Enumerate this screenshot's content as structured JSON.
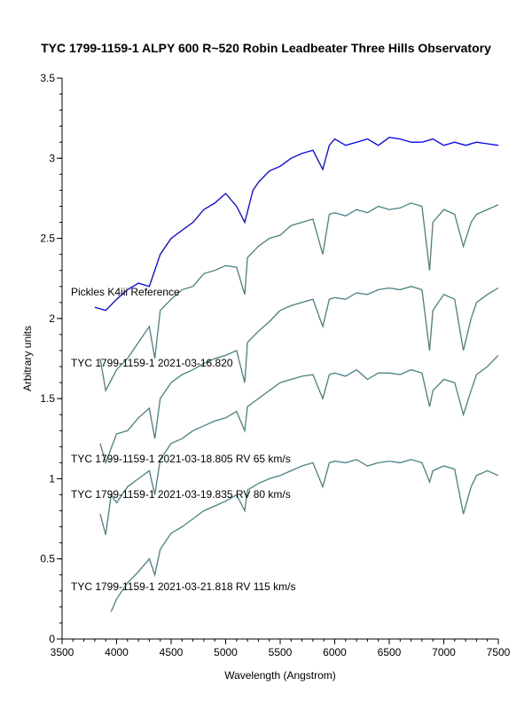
{
  "chart_data": {
    "type": "line",
    "title": "TYC 1799-1159-1   ALPY 600  R~520   Robin  Leadbeater Three Hills Observatory",
    "xlabel": "Wavelength (Angstrom)",
    "ylabel": "Arbitrary units",
    "xlim": [
      3500,
      7500
    ],
    "ylim": [
      0,
      3.5
    ],
    "xticks": [
      3500,
      4000,
      4500,
      5000,
      5500,
      6000,
      6500,
      7000,
      7500
    ],
    "yticks": [
      0,
      0.5,
      1,
      1.5,
      2,
      2.5,
      3,
      3.5
    ],
    "ytick_labels": [
      "0",
      "0.5",
      "1",
      "1.5",
      "2",
      "2.5",
      "3",
      "3.5"
    ],
    "grid": false,
    "series": [
      {
        "name": "Pickles K4iii Reference",
        "color": "#0000ff",
        "points": [
          [
            3800,
            2.07
          ],
          [
            3900,
            2.05
          ],
          [
            4000,
            2.12
          ],
          [
            4100,
            2.18
          ],
          [
            4200,
            2.22
          ],
          [
            4300,
            2.2
          ],
          [
            4400,
            2.4
          ],
          [
            4500,
            2.5
          ],
          [
            4600,
            2.55
          ],
          [
            4700,
            2.6
          ],
          [
            4800,
            2.68
          ],
          [
            4900,
            2.72
          ],
          [
            5000,
            2.78
          ],
          [
            5100,
            2.7
          ],
          [
            5175,
            2.6
          ],
          [
            5250,
            2.8
          ],
          [
            5300,
            2.85
          ],
          [
            5400,
            2.92
          ],
          [
            5500,
            2.95
          ],
          [
            5600,
            3.0
          ],
          [
            5700,
            3.03
          ],
          [
            5800,
            3.05
          ],
          [
            5890,
            2.93
          ],
          [
            5950,
            3.08
          ],
          [
            6000,
            3.12
          ],
          [
            6100,
            3.08
          ],
          [
            6200,
            3.1
          ],
          [
            6300,
            3.12
          ],
          [
            6400,
            3.08
          ],
          [
            6500,
            3.13
          ],
          [
            6600,
            3.12
          ],
          [
            6700,
            3.1
          ],
          [
            6800,
            3.1
          ],
          [
            6900,
            3.12
          ],
          [
            7000,
            3.08
          ],
          [
            7100,
            3.1
          ],
          [
            7200,
            3.08
          ],
          [
            7300,
            3.1
          ],
          [
            7400,
            3.09
          ],
          [
            7500,
            3.08
          ]
        ]
      },
      {
        "name": "TYC 1799-1159-1  2021-03-16.820",
        "color": "#4a8080",
        "points": [
          [
            3850,
            1.75
          ],
          [
            3900,
            1.55
          ],
          [
            4000,
            1.68
          ],
          [
            4100,
            1.75
          ],
          [
            4200,
            1.85
          ],
          [
            4300,
            1.95
          ],
          [
            4350,
            1.75
          ],
          [
            4400,
            2.05
          ],
          [
            4500,
            2.12
          ],
          [
            4600,
            2.18
          ],
          [
            4700,
            2.2
          ],
          [
            4800,
            2.28
          ],
          [
            4900,
            2.3
          ],
          [
            5000,
            2.33
          ],
          [
            5100,
            2.32
          ],
          [
            5175,
            2.15
          ],
          [
            5200,
            2.38
          ],
          [
            5300,
            2.45
          ],
          [
            5400,
            2.5
          ],
          [
            5500,
            2.52
          ],
          [
            5600,
            2.58
          ],
          [
            5700,
            2.6
          ],
          [
            5800,
            2.62
          ],
          [
            5890,
            2.4
          ],
          [
            5950,
            2.65
          ],
          [
            6000,
            2.66
          ],
          [
            6100,
            2.64
          ],
          [
            6200,
            2.68
          ],
          [
            6300,
            2.66
          ],
          [
            6400,
            2.7
          ],
          [
            6500,
            2.68
          ],
          [
            6600,
            2.69
          ],
          [
            6700,
            2.72
          ],
          [
            6800,
            2.7
          ],
          [
            6870,
            2.3
          ],
          [
            6900,
            2.6
          ],
          [
            7000,
            2.68
          ],
          [
            7100,
            2.65
          ],
          [
            7180,
            2.45
          ],
          [
            7250,
            2.6
          ],
          [
            7300,
            2.65
          ],
          [
            7400,
            2.68
          ],
          [
            7500,
            2.71
          ]
        ]
      },
      {
        "name": "TYC 1799-1159-1  2021-03-18.805   RV 65 km/s",
        "color": "#4a8080",
        "points": [
          [
            3850,
            1.22
          ],
          [
            3900,
            1.1
          ],
          [
            4000,
            1.28
          ],
          [
            4100,
            1.3
          ],
          [
            4200,
            1.38
          ],
          [
            4300,
            1.44
          ],
          [
            4350,
            1.25
          ],
          [
            4400,
            1.5
          ],
          [
            4500,
            1.6
          ],
          [
            4600,
            1.65
          ],
          [
            4700,
            1.68
          ],
          [
            4800,
            1.72
          ],
          [
            4900,
            1.75
          ],
          [
            5000,
            1.77
          ],
          [
            5100,
            1.8
          ],
          [
            5175,
            1.6
          ],
          [
            5200,
            1.85
          ],
          [
            5300,
            1.92
          ],
          [
            5400,
            1.98
          ],
          [
            5500,
            2.05
          ],
          [
            5600,
            2.08
          ],
          [
            5700,
            2.1
          ],
          [
            5800,
            2.12
          ],
          [
            5890,
            1.95
          ],
          [
            5950,
            2.12
          ],
          [
            6000,
            2.13
          ],
          [
            6100,
            2.12
          ],
          [
            6200,
            2.16
          ],
          [
            6300,
            2.15
          ],
          [
            6400,
            2.18
          ],
          [
            6500,
            2.19
          ],
          [
            6600,
            2.18
          ],
          [
            6700,
            2.2
          ],
          [
            6800,
            2.18
          ],
          [
            6870,
            1.8
          ],
          [
            6900,
            2.05
          ],
          [
            7000,
            2.15
          ],
          [
            7100,
            2.12
          ],
          [
            7180,
            1.8
          ],
          [
            7250,
            2.0
          ],
          [
            7300,
            2.1
          ],
          [
            7400,
            2.15
          ],
          [
            7500,
            2.19
          ]
        ]
      },
      {
        "name": "TYC 1799-1159-1  2021-03-19.835  RV 80 km/s",
        "color": "#4a8080",
        "points": [
          [
            3850,
            0.78
          ],
          [
            3900,
            0.65
          ],
          [
            3950,
            0.9
          ],
          [
            4000,
            0.85
          ],
          [
            4100,
            0.95
          ],
          [
            4200,
            1.0
          ],
          [
            4300,
            1.05
          ],
          [
            4350,
            0.9
          ],
          [
            4400,
            1.12
          ],
          [
            4500,
            1.22
          ],
          [
            4600,
            1.25
          ],
          [
            4700,
            1.3
          ],
          [
            4800,
            1.33
          ],
          [
            4900,
            1.36
          ],
          [
            5000,
            1.38
          ],
          [
            5100,
            1.42
          ],
          [
            5175,
            1.3
          ],
          [
            5200,
            1.45
          ],
          [
            5300,
            1.5
          ],
          [
            5400,
            1.55
          ],
          [
            5500,
            1.6
          ],
          [
            5600,
            1.62
          ],
          [
            5700,
            1.64
          ],
          [
            5800,
            1.65
          ],
          [
            5890,
            1.5
          ],
          [
            5950,
            1.65
          ],
          [
            6000,
            1.66
          ],
          [
            6100,
            1.64
          ],
          [
            6200,
            1.68
          ],
          [
            6300,
            1.62
          ],
          [
            6400,
            1.66
          ],
          [
            6500,
            1.66
          ],
          [
            6600,
            1.65
          ],
          [
            6700,
            1.68
          ],
          [
            6800,
            1.66
          ],
          [
            6870,
            1.45
          ],
          [
            6900,
            1.55
          ],
          [
            7000,
            1.62
          ],
          [
            7100,
            1.6
          ],
          [
            7180,
            1.4
          ],
          [
            7250,
            1.55
          ],
          [
            7300,
            1.65
          ],
          [
            7400,
            1.7
          ],
          [
            7500,
            1.77
          ]
        ]
      },
      {
        "name": "TYC 1799-1159-1  2021-03-21.818   RV 115 km/s",
        "color": "#4a8080",
        "points": [
          [
            3950,
            0.17
          ],
          [
            4000,
            0.25
          ],
          [
            4100,
            0.35
          ],
          [
            4200,
            0.42
          ],
          [
            4300,
            0.5
          ],
          [
            4350,
            0.4
          ],
          [
            4400,
            0.56
          ],
          [
            4500,
            0.66
          ],
          [
            4600,
            0.7
          ],
          [
            4700,
            0.75
          ],
          [
            4800,
            0.8
          ],
          [
            4900,
            0.83
          ],
          [
            5000,
            0.86
          ],
          [
            5100,
            0.9
          ],
          [
            5175,
            0.8
          ],
          [
            5200,
            0.93
          ],
          [
            5300,
            0.97
          ],
          [
            5400,
            1.0
          ],
          [
            5500,
            1.02
          ],
          [
            5600,
            1.05
          ],
          [
            5700,
            1.08
          ],
          [
            5800,
            1.1
          ],
          [
            5890,
            0.95
          ],
          [
            5950,
            1.1
          ],
          [
            6000,
            1.11
          ],
          [
            6100,
            1.1
          ],
          [
            6200,
            1.12
          ],
          [
            6300,
            1.08
          ],
          [
            6400,
            1.1
          ],
          [
            6500,
            1.11
          ],
          [
            6600,
            1.1
          ],
          [
            6700,
            1.12
          ],
          [
            6800,
            1.1
          ],
          [
            6870,
            0.98
          ],
          [
            6900,
            1.05
          ],
          [
            7000,
            1.08
          ],
          [
            7100,
            1.06
          ],
          [
            7180,
            0.78
          ],
          [
            7250,
            0.95
          ],
          [
            7300,
            1.02
          ],
          [
            7400,
            1.05
          ],
          [
            7500,
            1.02
          ]
        ]
      }
    ]
  }
}
